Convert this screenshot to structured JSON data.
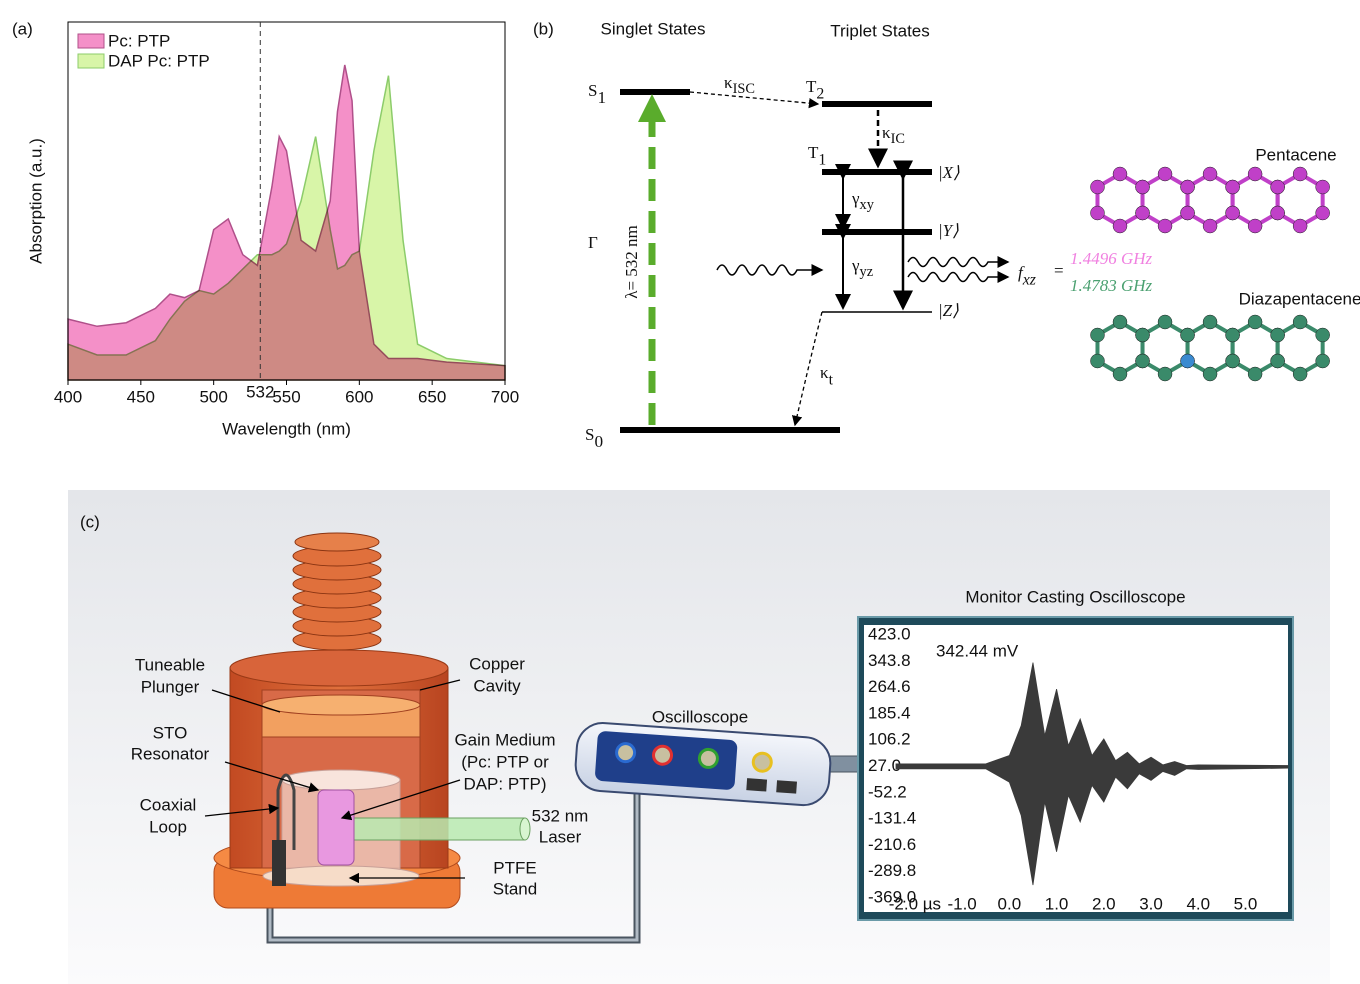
{
  "panel_labels": [
    "(a)",
    "(b)",
    "(c)"
  ],
  "chart_data": [
    {
      "type": "area",
      "xlabel": "Wavelength (nm)",
      "ylabel": "Absorption (a.u.)",
      "x": [
        400,
        420,
        440,
        460,
        470,
        480,
        490,
        500,
        510,
        520,
        530,
        540,
        545,
        550,
        560,
        570,
        580,
        585,
        590,
        595,
        600,
        610,
        620,
        630,
        640,
        660,
        700
      ],
      "series": [
        {
          "name": "Pc: PTP",
          "color": "#f490c8",
          "values": [
            0.17,
            0.15,
            0.16,
            0.2,
            0.24,
            0.23,
            0.25,
            0.42,
            0.45,
            0.35,
            0.32,
            0.54,
            0.68,
            0.64,
            0.39,
            0.36,
            0.5,
            0.75,
            0.88,
            0.78,
            0.36,
            0.1,
            0.06,
            0.06,
            0.06,
            0.05,
            0.04
          ]
        },
        {
          "name": "DAP Pc: PTP",
          "color": "#d8f5a8",
          "values": [
            0.1,
            0.07,
            0.07,
            0.11,
            0.17,
            0.22,
            0.25,
            0.24,
            0.27,
            0.31,
            0.35,
            0.35,
            0.36,
            0.38,
            0.5,
            0.68,
            0.42,
            0.31,
            0.32,
            0.35,
            0.36,
            0.64,
            0.85,
            0.39,
            0.1,
            0.06,
            0.04
          ]
        }
      ],
      "xlim": [
        400,
        700
      ],
      "xticks": [
        400,
        450,
        500,
        550,
        600,
        650,
        700
      ],
      "ylim": [
        0,
        1
      ],
      "reference_line": 532,
      "legend": "upper left"
    },
    {
      "type": "area",
      "title": "Monitor Casting Oscilloscope",
      "annotation": "342.44 mV",
      "x": [
        -2.4,
        -0.5,
        0,
        0.25,
        0.5,
        0.75,
        1.0,
        1.25,
        1.5,
        1.75,
        2.0,
        2.25,
        2.5,
        2.75,
        3.0,
        3.25,
        3.5,
        3.75,
        4.0,
        5.9
      ],
      "series": [
        {
          "color": "#3a3a3a",
          "values": [
            35,
            35,
            60,
            150,
            340,
            120,
            260,
            90,
            170,
            60,
            110,
            45,
            70,
            35,
            55,
            32,
            42,
            30,
            32,
            30
          ]
        },
        {
          "color": "#3a3a3a",
          "values": [
            20,
            20,
            -20,
            -120,
            -330,
            -80,
            -230,
            -60,
            -140,
            -30,
            -80,
            -5,
            -40,
            5,
            -15,
            12,
            0,
            20,
            18,
            22
          ]
        }
      ],
      "xlim": [
        -2.4,
        5.9
      ],
      "xticks": [
        {
          "value": -2,
          "label": "-2.0 µs"
        },
        {
          "value": -1,
          "label": "-1.0"
        },
        {
          "value": 0,
          "label": "0.0"
        },
        {
          "value": 1,
          "label": "1.0"
        },
        {
          "value": 2,
          "label": "2.0"
        },
        {
          "value": 3,
          "label": "3.0"
        },
        {
          "value": 4,
          "label": "4.0"
        },
        {
          "value": 5,
          "label": "5.0"
        }
      ],
      "ylim": [
        -369,
        423
      ],
      "yticks": [
        {
          "value": 423,
          "label": "423.0"
        },
        343.8,
        264.6,
        185.4,
        106.2,
        {
          "value": 27,
          "label": "27.0"
        },
        -52.2,
        -131.4,
        -210.6,
        -289.8,
        {
          "value": -369,
          "label": "-369.0"
        }
      ]
    }
  ],
  "energy_diagram": {
    "singlet_title": "Singlet States",
    "triplet_title": "Triplet States",
    "S1": {
      "main": "S",
      "sub": "1"
    },
    "S0": {
      "main": "S",
      "sub": "0"
    },
    "T2": {
      "main": "T",
      "sub": "2"
    },
    "T1": {
      "main": "T",
      "sub": "1"
    },
    "k_isc": {
      "main": "κ",
      "sub": "ISC"
    },
    "k_ic": {
      "main": "κ",
      "sub": "IC"
    },
    "k_t": {
      "main": "κ",
      "sub": "t"
    },
    "gamma": "Γ",
    "pump": "λ= 532 nm",
    "g_xy": {
      "main": "γ",
      "sub": "xy"
    },
    "g_yz": {
      "main": "γ",
      "sub": "yz"
    },
    "state_x": "|X⟩",
    "state_y": "|Y⟩",
    "state_z": "|Z⟩",
    "f_xz": {
      "main": "f",
      "sub": "xz"
    },
    "equals": "=",
    "freq_pc": "1.4496 GHz",
    "freq_dap": "1.4783 GHz",
    "mol_pc": "Pentacene",
    "mol_dap": "Diazapentacene"
  },
  "setup": {
    "plunger": [
      "Tuneable",
      "Plunger"
    ],
    "cavity": [
      "Copper",
      "Cavity"
    ],
    "resonator": [
      "STO",
      "Resonator"
    ],
    "gain": [
      "Gain Medium",
      "(Pc: PTP or",
      "DAP: PTP)"
    ],
    "loop": [
      "Coaxial",
      "Loop"
    ],
    "laser": [
      "532 nm",
      "Laser"
    ],
    "stand": [
      "PTFE",
      "Stand"
    ],
    "oscilloscope": "Oscilloscope"
  }
}
